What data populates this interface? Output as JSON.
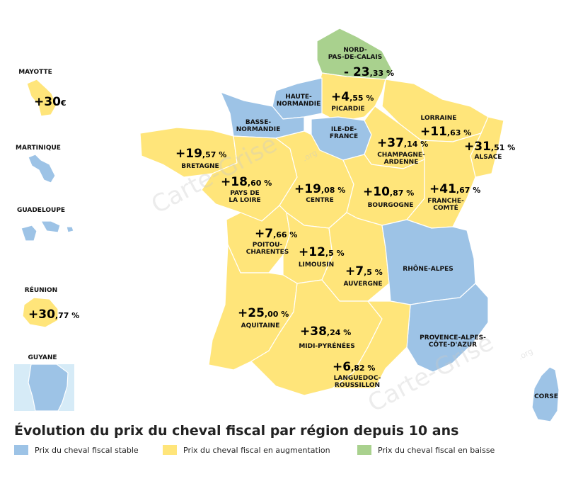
{
  "colors": {
    "stable": "#9dc3e6",
    "increase": "#ffe57a",
    "decrease": "#a9d18e",
    "border": "#ffffff"
  },
  "title": "Évolution du prix du cheval fiscal par région depuis 10 ans",
  "watermark": "Carte-Grise",
  "watermark_suffix": ".org",
  "legend": [
    {
      "key": "stable",
      "label": "Prix du cheval fiscal stable"
    },
    {
      "key": "increase",
      "label": "Prix du cheval fiscal en augmentation"
    },
    {
      "key": "decrease",
      "label": "Prix du cheval fiscal en baisse"
    }
  ],
  "regions": [
    {
      "id": "nord",
      "label": [
        "NORD-",
        "PAS-DE-CALAIS"
      ],
      "value_big": "- 23",
      "value_small": ",33 %",
      "status": "decrease"
    },
    {
      "id": "picardie",
      "label": [
        "PICARDIE"
      ],
      "value_big": "+4",
      "value_small": ",55 %",
      "status": "increase"
    },
    {
      "id": "haute-normandie",
      "label": [
        "HAUTE-",
        "NORMANDIE"
      ],
      "value_big": "",
      "value_small": "",
      "status": "stable"
    },
    {
      "id": "basse-normandie",
      "label": [
        "BASSE-",
        "NORMANDIE"
      ],
      "value_big": "",
      "value_small": "",
      "status": "stable"
    },
    {
      "id": "ile-de-france",
      "label": [
        "ILE-DE-",
        "FRANCE"
      ],
      "value_big": "",
      "value_small": "",
      "status": "stable"
    },
    {
      "id": "lorraine",
      "label": [
        "LORRAINE"
      ],
      "value_big": "+11",
      "value_small": ",63 %",
      "status": "increase"
    },
    {
      "id": "alsace",
      "label": [
        "ALSACE"
      ],
      "value_big": "+31",
      "value_small": ",51 %",
      "status": "increase"
    },
    {
      "id": "champagne",
      "label": [
        "CHAMPAGNE-",
        "ARDENNE"
      ],
      "value_big": "+37",
      "value_small": ",14 %",
      "status": "increase"
    },
    {
      "id": "bretagne",
      "label": [
        "BRETAGNE"
      ],
      "value_big": "+19",
      "value_small": ",57 %",
      "status": "increase"
    },
    {
      "id": "pays-de-la-loire",
      "label": [
        "PAYS DE",
        "LA LOIRE"
      ],
      "value_big": "+18",
      "value_small": ",60 %",
      "status": "increase"
    },
    {
      "id": "centre",
      "label": [
        "CENTRE"
      ],
      "value_big": "+19",
      "value_small": ",08 %",
      "status": "increase"
    },
    {
      "id": "bourgogne",
      "label": [
        "BOURGOGNE"
      ],
      "value_big": "+10",
      "value_small": ",87 %",
      "status": "increase"
    },
    {
      "id": "franche-comte",
      "label": [
        "FRANCHE-",
        "COMTÉ"
      ],
      "value_big": "+41",
      "value_small": ",67 %",
      "status": "increase"
    },
    {
      "id": "poitou",
      "label": [
        "POITOU-",
        "CHARENTES"
      ],
      "value_big": "+7",
      "value_small": ",66 %",
      "status": "increase"
    },
    {
      "id": "limousin",
      "label": [
        "LIMOUSIN"
      ],
      "value_big": "+12",
      "value_small": ",5 %",
      "status": "increase"
    },
    {
      "id": "auvergne",
      "label": [
        "AUVERGNE"
      ],
      "value_big": "+7",
      "value_small": ",5 %",
      "status": "increase"
    },
    {
      "id": "rhone-alpes",
      "label": [
        "RHÔNE-ALPES"
      ],
      "value_big": "",
      "value_small": "",
      "status": "stable"
    },
    {
      "id": "aquitaine",
      "label": [
        "AQUITAINE"
      ],
      "value_big": "+25",
      "value_small": ",00 %",
      "status": "increase"
    },
    {
      "id": "midi-pyrenees",
      "label": [
        "MIDI-PYRÉNÉES"
      ],
      "value_big": "+38",
      "value_small": ",24 %",
      "status": "increase"
    },
    {
      "id": "paca",
      "label": [
        "PROVENCE-ALPES-",
        "CÔTE-D'AZUR"
      ],
      "value_big": "",
      "value_small": "",
      "status": "stable"
    },
    {
      "id": "languedoc",
      "label": [
        "LANGUEDOC-",
        "ROUSSILLON"
      ],
      "value_big": "+6",
      "value_small": ",82 %",
      "status": "increase"
    },
    {
      "id": "corse",
      "label": [
        "CORSE"
      ],
      "value_big": "",
      "value_small": "",
      "status": "stable"
    }
  ],
  "overseas": [
    {
      "id": "mayotte",
      "label": "MAYOTTE",
      "value_big": "+30",
      "value_small": "€",
      "status": "increase"
    },
    {
      "id": "martinique",
      "label": "MARTINIQUE",
      "value_big": "",
      "value_small": "",
      "status": "stable"
    },
    {
      "id": "guadeloupe",
      "label": "GUADELOUPE",
      "value_big": "",
      "value_small": "",
      "status": "stable"
    },
    {
      "id": "reunion",
      "label": "RÉUNION",
      "value_big": "+30",
      "value_small": ",77 %",
      "status": "increase"
    },
    {
      "id": "guyane",
      "label": "GUYANE",
      "value_big": "",
      "value_small": "",
      "status": "stable"
    }
  ]
}
